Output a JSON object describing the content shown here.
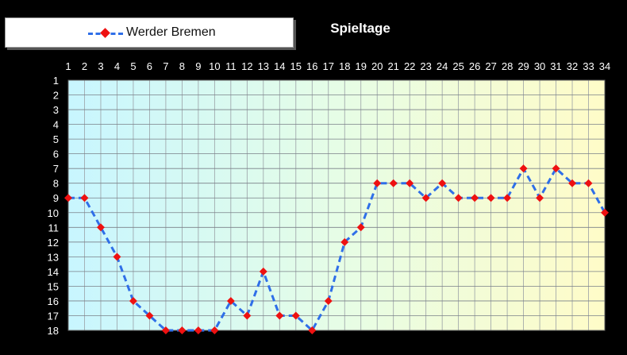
{
  "chart_data": {
    "type": "line",
    "title": "Spieltage",
    "legend": {
      "placement": "top-left"
    },
    "x": [
      1,
      2,
      3,
      4,
      5,
      6,
      7,
      8,
      9,
      10,
      11,
      12,
      13,
      14,
      15,
      16,
      17,
      18,
      19,
      20,
      21,
      22,
      23,
      24,
      25,
      26,
      27,
      28,
      29,
      30,
      31,
      32,
      33,
      34
    ],
    "xlim": [
      1,
      34
    ],
    "ylim": [
      1,
      18
    ],
    "y_reversed": true,
    "xticks": [
      1,
      2,
      3,
      4,
      5,
      6,
      7,
      8,
      9,
      10,
      11,
      12,
      13,
      14,
      15,
      16,
      17,
      18,
      19,
      20,
      21,
      22,
      23,
      24,
      25,
      26,
      27,
      28,
      29,
      30,
      31,
      32,
      33,
      34
    ],
    "yticks": [
      1,
      2,
      3,
      4,
      5,
      6,
      7,
      8,
      9,
      10,
      11,
      12,
      13,
      14,
      15,
      16,
      17,
      18
    ],
    "grid": true,
    "series": [
      {
        "name": "Werder Bremen",
        "color": "#2f6fe8",
        "marker_color": "#ee1111",
        "line_style": "dashed",
        "marker": "diamond",
        "values": [
          9,
          9,
          11,
          13,
          16,
          17,
          18,
          18,
          18,
          18,
          16,
          17,
          14,
          17,
          17,
          18,
          16,
          12,
          11,
          8,
          8,
          8,
          9,
          8,
          9,
          9,
          9,
          9,
          7,
          9,
          7,
          8,
          8,
          10
        ]
      }
    ]
  }
}
